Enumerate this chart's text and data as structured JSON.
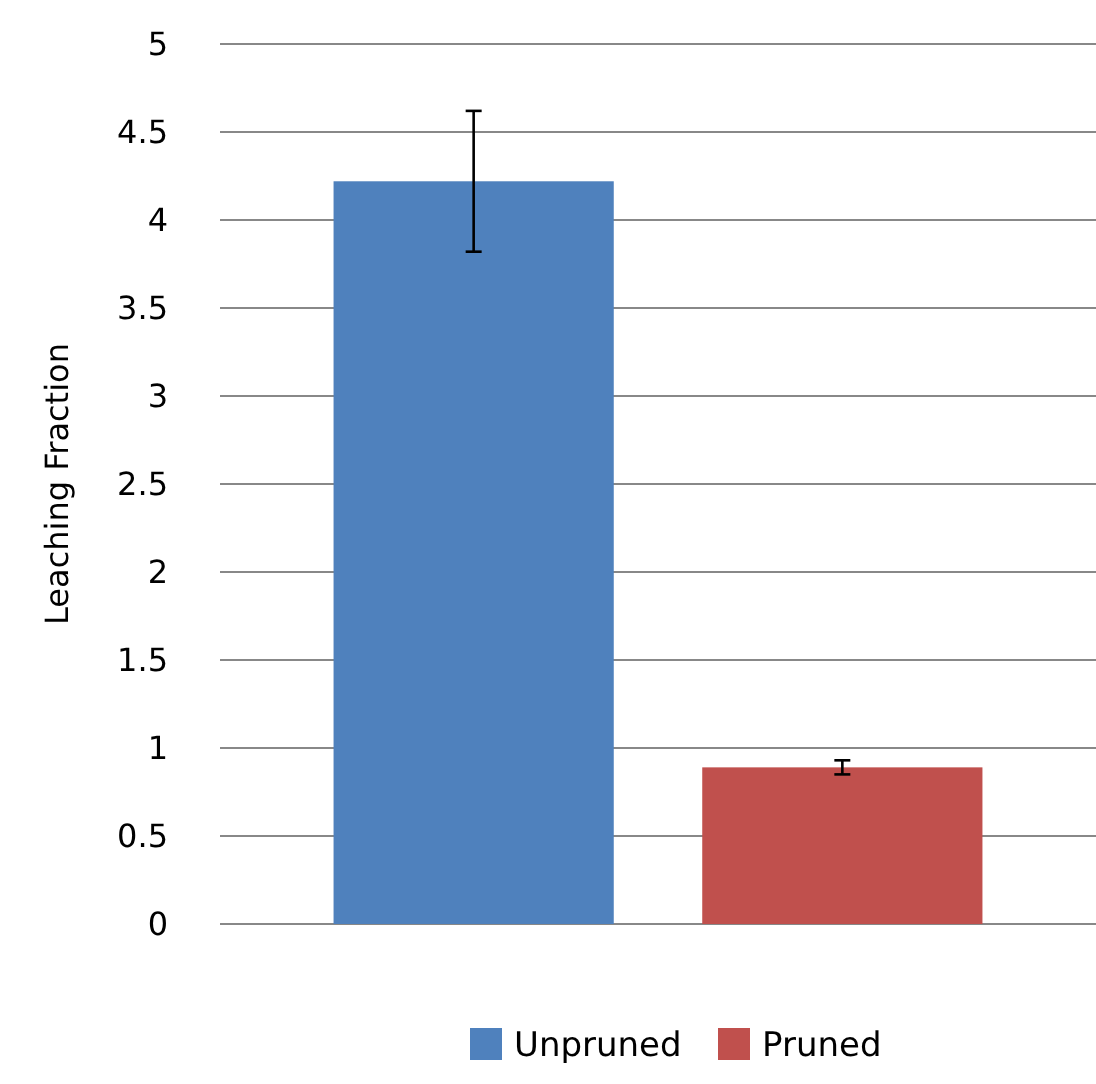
{
  "chart_data": {
    "type": "bar",
    "ylabel": "Leaching Fraction",
    "categories": [
      null
    ],
    "series": [
      {
        "name": "Unpruned",
        "color": "#4f81bd",
        "values": [
          4.22
        ],
        "errors": [
          0.4
        ]
      },
      {
        "name": "Pruned",
        "color": "#c0504d",
        "values": [
          0.89
        ],
        "errors": [
          0.04
        ]
      }
    ],
    "ylim": [
      0,
      5
    ],
    "yticks": [
      0,
      0.5,
      1,
      1.5,
      2,
      2.5,
      3,
      3.5,
      4,
      4.5,
      5
    ],
    "grid": "y",
    "legend": "bottom"
  }
}
